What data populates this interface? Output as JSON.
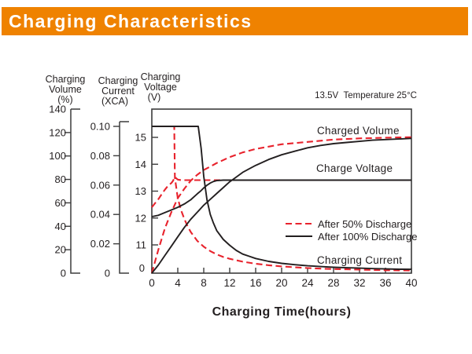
{
  "header": {
    "title": "Charging Characteristics",
    "bg_color": "#ef8200",
    "text_color": "#ffffff"
  },
  "conditions_note": "13.5V  Temperature 25°C",
  "chart_data": {
    "type": "line",
    "title": "Charging Characteristics",
    "grid": false,
    "x_axis": {
      "label": "Charging Time(hours)",
      "range": [
        0,
        40
      ],
      "ticks": [
        0,
        4,
        8,
        12,
        16,
        20,
        24,
        28,
        32,
        36,
        40
      ]
    },
    "y_axes": [
      {
        "id": "volume",
        "title": "Charging Volume",
        "unit": "(%)",
        "range": [
          0,
          140
        ],
        "ticks": [
          "0",
          "20",
          "40",
          "60",
          "80",
          "100",
          "120",
          "140"
        ]
      },
      {
        "id": "current",
        "title": "Charging Current",
        "unit": "(XCA)",
        "range": [
          0,
          0.1
        ],
        "ticks": [
          "0",
          "0.02",
          "0.04",
          "0.06",
          "0.08",
          "0.10"
        ]
      },
      {
        "id": "voltage",
        "title": "Charging Voltage",
        "unit": "(V)",
        "range": [
          11,
          15
        ],
        "ticks": [
          "11",
          "12",
          "13",
          "14",
          "15"
        ],
        "zero_label": "0"
      }
    ],
    "legend": {
      "position": "inside-right",
      "entries": [
        {
          "label": "After 50% Discharge",
          "color": "#e8232d",
          "dash": true
        },
        {
          "label": "After 100% Discharge",
          "color": "#231f20",
          "dash": false
        }
      ]
    },
    "curve_labels": {
      "charged_volume": "Charged Volume",
      "charge_voltage": "Charge Voltage",
      "charging_current": "Charging Current"
    },
    "series": [
      {
        "name": "Charged Volume (After 50% Discharge)",
        "axis": "volume",
        "color": "#e8232d",
        "style": "dashed",
        "points": [
          [
            0,
            0
          ],
          [
            0.5,
            10
          ],
          [
            1,
            20
          ],
          [
            1.5,
            29
          ],
          [
            2,
            38
          ],
          [
            2.5,
            45
          ],
          [
            3,
            52
          ],
          [
            3.5,
            58
          ],
          [
            4,
            64
          ],
          [
            4.5,
            68
          ],
          [
            5,
            72
          ],
          [
            6,
            79
          ],
          [
            7,
            84
          ],
          [
            8,
            88
          ],
          [
            9,
            91
          ],
          [
            10,
            94
          ],
          [
            11,
            96.5
          ],
          [
            12,
            99
          ],
          [
            13,
            101
          ],
          [
            14,
            103
          ],
          [
            15,
            104.5
          ],
          [
            16,
            106
          ],
          [
            18,
            108
          ],
          [
            20,
            110
          ],
          [
            22,
            111
          ],
          [
            24,
            112
          ],
          [
            26,
            113
          ],
          [
            28,
            114
          ],
          [
            30,
            114.5
          ],
          [
            32,
            115
          ],
          [
            34,
            115.3
          ],
          [
            36,
            115.6
          ],
          [
            38,
            115.8
          ],
          [
            40,
            116
          ]
        ]
      },
      {
        "name": "Charge Voltage (After 50% Discharge)",
        "axis": "voltage",
        "color": "#e8232d",
        "style": "dashed",
        "points": [
          [
            0,
            12.4
          ],
          [
            0.5,
            12.55
          ],
          [
            1,
            12.7
          ],
          [
            1.5,
            12.88
          ],
          [
            2,
            13.05
          ],
          [
            2.5,
            13.2
          ],
          [
            3,
            13.3
          ],
          [
            3.2,
            13.36
          ],
          [
            3.4,
            13.45
          ],
          [
            3.55,
            13.53
          ],
          [
            3.75,
            13.48
          ],
          [
            4,
            13.43
          ],
          [
            4.5,
            13.41
          ],
          [
            40,
            13.41
          ]
        ]
      },
      {
        "name": "Charging Current (After 50% Discharge)",
        "axis": "current",
        "color": "#e8232d",
        "style": "dashed",
        "points": [
          [
            0,
            0.1
          ],
          [
            3.45,
            0.1
          ],
          [
            3.55,
            0.065
          ],
          [
            4,
            0.051
          ],
          [
            4.5,
            0.043
          ],
          [
            5,
            0.037
          ],
          [
            5.5,
            0.032
          ],
          [
            6,
            0.028
          ],
          [
            7,
            0.022
          ],
          [
            8,
            0.018
          ],
          [
            9,
            0.015
          ],
          [
            10,
            0.0128
          ],
          [
            11,
            0.011
          ],
          [
            12,
            0.0098
          ],
          [
            14,
            0.0078
          ],
          [
            16,
            0.0064
          ],
          [
            18,
            0.0054
          ],
          [
            20,
            0.0046
          ],
          [
            22,
            0.004
          ],
          [
            24,
            0.0035
          ],
          [
            26,
            0.0031
          ],
          [
            28,
            0.0028
          ],
          [
            30,
            0.0026
          ],
          [
            32,
            0.0024
          ],
          [
            34,
            0.0022
          ],
          [
            36,
            0.002
          ],
          [
            38,
            0.0019
          ],
          [
            40,
            0.0018
          ]
        ]
      },
      {
        "name": "Charged Volume (After 100% Discharge)",
        "axis": "volume",
        "color": "#231f20",
        "style": "solid",
        "points": [
          [
            0,
            0
          ],
          [
            1,
            7
          ],
          [
            2,
            15
          ],
          [
            3,
            23
          ],
          [
            4,
            31
          ],
          [
            5,
            39
          ],
          [
            6,
            46
          ],
          [
            7,
            52
          ],
          [
            8,
            58
          ],
          [
            9,
            63
          ],
          [
            10,
            68
          ],
          [
            11,
            73
          ],
          [
            12,
            78
          ],
          [
            13,
            82
          ],
          [
            14,
            86
          ],
          [
            15,
            89
          ],
          [
            16,
            92
          ],
          [
            18,
            97
          ],
          [
            20,
            101
          ],
          [
            22,
            104
          ],
          [
            24,
            107
          ],
          [
            26,
            109
          ],
          [
            28,
            110.5
          ],
          [
            30,
            111.5
          ],
          [
            32,
            112.5
          ],
          [
            34,
            113.5
          ],
          [
            36,
            114
          ],
          [
            38,
            114.5
          ],
          [
            40,
            115
          ]
        ]
      },
      {
        "name": "Charge Voltage (After 100% Discharge)",
        "axis": "voltage",
        "color": "#231f20",
        "style": "solid",
        "points": [
          [
            0,
            12.05
          ],
          [
            1,
            12.1
          ],
          [
            2,
            12.2
          ],
          [
            3,
            12.3
          ],
          [
            4,
            12.4
          ],
          [
            5,
            12.52
          ],
          [
            6,
            12.68
          ],
          [
            7,
            12.9
          ],
          [
            7.5,
            13.0
          ],
          [
            8,
            13.12
          ],
          [
            8.5,
            13.22
          ],
          [
            9,
            13.3
          ],
          [
            9.5,
            13.36
          ],
          [
            10,
            13.39
          ],
          [
            11,
            13.41
          ],
          [
            40,
            13.41
          ]
        ]
      },
      {
        "name": "Charging Current (After 100% Discharge)",
        "axis": "current",
        "color": "#231f20",
        "style": "solid",
        "points": [
          [
            0,
            0.1
          ],
          [
            7.15,
            0.1
          ],
          [
            7.6,
            0.085
          ],
          [
            8,
            0.066
          ],
          [
            8.5,
            0.05
          ],
          [
            9,
            0.04
          ],
          [
            9.5,
            0.034
          ],
          [
            10,
            0.029
          ],
          [
            11,
            0.023
          ],
          [
            12,
            0.019
          ],
          [
            13,
            0.0155
          ],
          [
            14,
            0.013
          ],
          [
            15,
            0.0115
          ],
          [
            16,
            0.01
          ],
          [
            18,
            0.008
          ],
          [
            20,
            0.0067
          ],
          [
            22,
            0.0058
          ],
          [
            24,
            0.005
          ],
          [
            26,
            0.0045
          ],
          [
            28,
            0.004
          ],
          [
            30,
            0.0037
          ],
          [
            32,
            0.0034
          ],
          [
            34,
            0.0031
          ],
          [
            36,
            0.0029
          ],
          [
            38,
            0.0027
          ],
          [
            40,
            0.0026
          ]
        ]
      }
    ]
  }
}
